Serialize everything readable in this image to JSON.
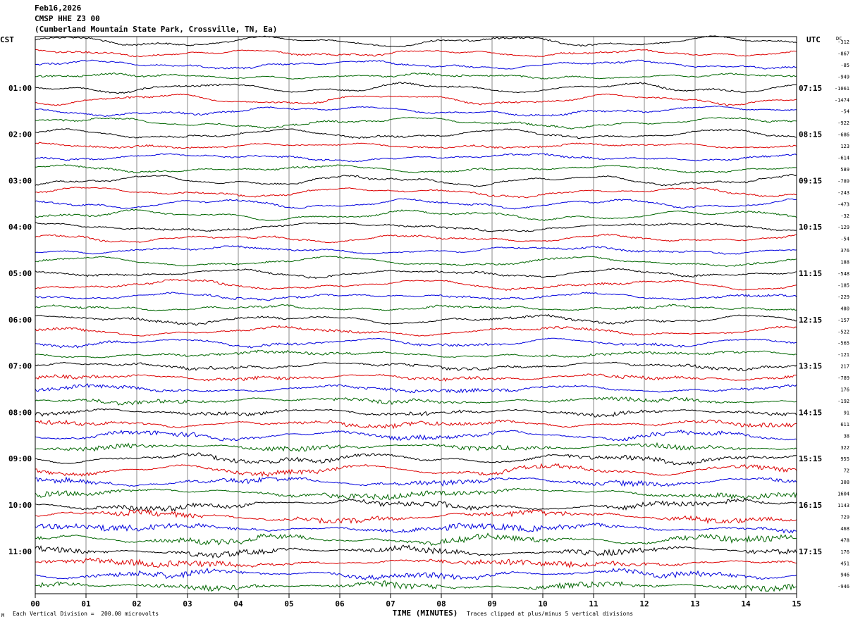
{
  "header": {
    "date": "Feb16,2026",
    "station": "CMSP HHE Z3 00",
    "location": "(Cumberland Mountain State Park, Crossville, TN, Ea)"
  },
  "footer": {
    "scale_note": "Each Vertical Division =  200.00 microvolts",
    "clip_note": "Traces clipped at plus/minus 5 vertical divisions",
    "corner_mark": "M"
  },
  "chart_data": {
    "type": "line",
    "xlabel": "TIME (MINUTES)",
    "xlim": [
      0,
      15
    ],
    "x_ticks": [
      "00",
      "01",
      "02",
      "03",
      "04",
      "05",
      "06",
      "07",
      "08",
      "09",
      "10",
      "11",
      "12",
      "13",
      "14",
      "15"
    ],
    "left_axis_label": "CST",
    "right_axis_label": "UTC",
    "dc_label": "DC",
    "grid": true,
    "trace_colors": [
      "#000000",
      "#dd0000",
      "#0000dd",
      "#006600"
    ],
    "left_time_labels": [
      {
        "row": 4,
        "text": "01:00"
      },
      {
        "row": 8,
        "text": "02:00"
      },
      {
        "row": 12,
        "text": "03:00"
      },
      {
        "row": 16,
        "text": "04:00"
      },
      {
        "row": 20,
        "text": "05:00"
      },
      {
        "row": 24,
        "text": "06:00"
      },
      {
        "row": 28,
        "text": "07:00"
      },
      {
        "row": 32,
        "text": "08:00"
      },
      {
        "row": 36,
        "text": "09:00"
      },
      {
        "row": 40,
        "text": "10:00"
      },
      {
        "row": 44,
        "text": "11:00"
      }
    ],
    "right_time_labels": [
      {
        "row": 4,
        "text": "07:15"
      },
      {
        "row": 8,
        "text": "08:15"
      },
      {
        "row": 12,
        "text": "09:15"
      },
      {
        "row": 16,
        "text": "10:15"
      },
      {
        "row": 20,
        "text": "11:15"
      },
      {
        "row": 24,
        "text": "12:15"
      },
      {
        "row": 28,
        "text": "13:15"
      },
      {
        "row": 32,
        "text": "14:15"
      },
      {
        "row": 36,
        "text": "15:15"
      },
      {
        "row": 40,
        "text": "16:15"
      },
      {
        "row": 44,
        "text": "17:15"
      }
    ],
    "dc_offsets": [
      "-312",
      "-867",
      "-85",
      "-949",
      "-1061",
      "-1474",
      "-54",
      "-922",
      "-686",
      "123",
      "-614",
      "589",
      "-789",
      "-243",
      "-473",
      "-32",
      "-129",
      "-54",
      "376",
      "188",
      "-548",
      "-185",
      "-229",
      "480",
      "-157",
      "-522",
      "-565",
      "-121",
      "217",
      "-789",
      "176",
      "-192",
      "91",
      "611",
      "38",
      "322",
      "955",
      "72",
      "308",
      "1604",
      "1143",
      "729",
      "468",
      "478",
      "176",
      "451",
      "946",
      "-946"
    ],
    "activity": [
      0.15,
      0.15,
      0.15,
      0.15,
      0.15,
      0.15,
      0.15,
      0.15,
      0.15,
      0.15,
      0.15,
      0.15,
      0.15,
      0.15,
      0.15,
      0.15,
      0.15,
      0.15,
      0.15,
      0.15,
      0.2,
      0.2,
      0.2,
      0.2,
      0.25,
      0.25,
      0.3,
      0.3,
      0.35,
      0.4,
      0.45,
      0.5,
      0.5,
      0.55,
      0.6,
      0.65,
      0.6,
      0.65,
      0.7,
      0.75,
      0.8,
      0.8,
      0.85,
      0.85,
      0.85,
      0.85,
      0.85,
      0.85
    ]
  }
}
